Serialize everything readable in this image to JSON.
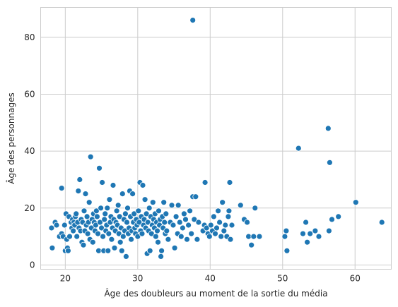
{
  "chart_data": {
    "type": "scatter",
    "title": "",
    "xlabel": "Âge des doubleurs au moment de la sortie du média",
    "ylabel": "Âge des personnages",
    "xlim": [
      16.6,
      65.0
    ],
    "ylim": [
      -1.5,
      90.5
    ],
    "x_ticks": [
      20,
      30,
      40,
      50,
      60
    ],
    "y_ticks": [
      0,
      20,
      40,
      60,
      80
    ],
    "grid": true,
    "marker_color": "#1f77b4",
    "marker_edge_color": "#ffffff",
    "points": [
      [
        18.1,
        13
      ],
      [
        18.2,
        6
      ],
      [
        18.6,
        15
      ],
      [
        18.8,
        14
      ],
      [
        19.2,
        10
      ],
      [
        19.5,
        27
      ],
      [
        19.5,
        11
      ],
      [
        19.7,
        10
      ],
      [
        19.9,
        14
      ],
      [
        20.0,
        5
      ],
      [
        20.1,
        18
      ],
      [
        20.2,
        9
      ],
      [
        20.3,
        6
      ],
      [
        20.4,
        5
      ],
      [
        20.5,
        17
      ],
      [
        20.6,
        10
      ],
      [
        20.8,
        15
      ],
      [
        20.9,
        13
      ],
      [
        21.0,
        16
      ],
      [
        21.1,
        12
      ],
      [
        21.2,
        15
      ],
      [
        21.3,
        14
      ],
      [
        21.4,
        17
      ],
      [
        21.5,
        18
      ],
      [
        21.6,
        10
      ],
      [
        21.7,
        15
      ],
      [
        21.8,
        26
      ],
      [
        21.9,
        13
      ],
      [
        22.0,
        30
      ],
      [
        22.1,
        12
      ],
      [
        22.2,
        16
      ],
      [
        22.3,
        8
      ],
      [
        22.4,
        15
      ],
      [
        22.5,
        7
      ],
      [
        22.6,
        19
      ],
      [
        22.7,
        12
      ],
      [
        22.8,
        25
      ],
      [
        22.9,
        14
      ],
      [
        23.0,
        17
      ],
      [
        23.1,
        11
      ],
      [
        23.2,
        15
      ],
      [
        23.3,
        22
      ],
      [
        23.4,
        9
      ],
      [
        23.5,
        38
      ],
      [
        23.6,
        13
      ],
      [
        23.7,
        16
      ],
      [
        23.8,
        8
      ],
      [
        23.9,
        18
      ],
      [
        24.0,
        15
      ],
      [
        24.1,
        12
      ],
      [
        24.2,
        14
      ],
      [
        24.3,
        19
      ],
      [
        24.4,
        17
      ],
      [
        24.5,
        11
      ],
      [
        24.6,
        5
      ],
      [
        24.7,
        34
      ],
      [
        24.8,
        15
      ],
      [
        24.9,
        20
      ],
      [
        25.0,
        13
      ],
      [
        25.1,
        29
      ],
      [
        25.2,
        10
      ],
      [
        25.3,
        5
      ],
      [
        25.4,
        16
      ],
      [
        25.5,
        18
      ],
      [
        25.6,
        12
      ],
      [
        25.7,
        14
      ],
      [
        25.8,
        20
      ],
      [
        25.9,
        5
      ],
      [
        26.0,
        11
      ],
      [
        26.1,
        23
      ],
      [
        26.2,
        15
      ],
      [
        26.3,
        17
      ],
      [
        26.4,
        9
      ],
      [
        26.5,
        13
      ],
      [
        26.6,
        28
      ],
      [
        26.7,
        16
      ],
      [
        26.8,
        6
      ],
      [
        26.9,
        12
      ],
      [
        27.0,
        15
      ],
      [
        27.1,
        19
      ],
      [
        27.2,
        14
      ],
      [
        27.3,
        21
      ],
      [
        27.4,
        11
      ],
      [
        27.5,
        17
      ],
      [
        27.6,
        8
      ],
      [
        27.7,
        13
      ],
      [
        27.8,
        5
      ],
      [
        27.9,
        25
      ],
      [
        28.0,
        10
      ],
      [
        28.1,
        16
      ],
      [
        28.2,
        12
      ],
      [
        28.3,
        18
      ],
      [
        28.4,
        3
      ],
      [
        28.5,
        15
      ],
      [
        28.6,
        20
      ],
      [
        28.7,
        11
      ],
      [
        28.8,
        13
      ],
      [
        28.9,
        26
      ],
      [
        29.0,
        17
      ],
      [
        29.1,
        9
      ],
      [
        29.2,
        12
      ],
      [
        29.3,
        25
      ],
      [
        29.4,
        15
      ],
      [
        29.5,
        18
      ],
      [
        29.6,
        13
      ],
      [
        29.7,
        11
      ],
      [
        29.8,
        16
      ],
      [
        29.9,
        14
      ],
      [
        30.0,
        10
      ],
      [
        30.1,
        19
      ],
      [
        30.2,
        15
      ],
      [
        30.3,
        29
      ],
      [
        30.4,
        12
      ],
      [
        30.5,
        17
      ],
      [
        30.6,
        11
      ],
      [
        30.7,
        28
      ],
      [
        30.8,
        14
      ],
      [
        30.9,
        16
      ],
      [
        31.0,
        23
      ],
      [
        31.1,
        13
      ],
      [
        31.2,
        18
      ],
      [
        31.3,
        4
      ],
      [
        31.4,
        15
      ],
      [
        31.5,
        12
      ],
      [
        31.6,
        20
      ],
      [
        31.7,
        5
      ],
      [
        31.8,
        17
      ],
      [
        31.9,
        11
      ],
      [
        32.0,
        14
      ],
      [
        32.1,
        22
      ],
      [
        32.2,
        16
      ],
      [
        32.3,
        13
      ],
      [
        32.4,
        18
      ],
      [
        32.5,
        10
      ],
      [
        32.6,
        15
      ],
      [
        32.7,
        12
      ],
      [
        32.8,
        8
      ],
      [
        32.9,
        19
      ],
      [
        33.0,
        14
      ],
      [
        33.1,
        16
      ],
      [
        33.2,
        3
      ],
      [
        33.3,
        5
      ],
      [
        33.4,
        17
      ],
      [
        33.5,
        13
      ],
      [
        33.6,
        22
      ],
      [
        33.7,
        15
      ],
      [
        33.8,
        11
      ],
      [
        33.9,
        18
      ],
      [
        34.0,
        12
      ],
      [
        34.2,
        9
      ],
      [
        34.5,
        15
      ],
      [
        34.7,
        21
      ],
      [
        34.9,
        14
      ],
      [
        35.1,
        6
      ],
      [
        35.3,
        17
      ],
      [
        35.5,
        11
      ],
      [
        35.6,
        21
      ],
      [
        35.8,
        15
      ],
      [
        36.0,
        10
      ],
      [
        36.2,
        13
      ],
      [
        36.4,
        18
      ],
      [
        36.6,
        16
      ],
      [
        36.8,
        9
      ],
      [
        37.0,
        14
      ],
      [
        37.2,
        19
      ],
      [
        37.4,
        11
      ],
      [
        37.6,
        24
      ],
      [
        37.6,
        86
      ],
      [
        37.8,
        16
      ],
      [
        38.0,
        24
      ],
      [
        38.2,
        9
      ],
      [
        38.4,
        15
      ],
      [
        39.0,
        12
      ],
      [
        39.2,
        14
      ],
      [
        39.3,
        29
      ],
      [
        39.5,
        13
      ],
      [
        39.7,
        11
      ],
      [
        39.9,
        10
      ],
      [
        40.1,
        14
      ],
      [
        40.3,
        12
      ],
      [
        40.5,
        17
      ],
      [
        40.7,
        11
      ],
      [
        40.9,
        13
      ],
      [
        41.1,
        19
      ],
      [
        41.3,
        15
      ],
      [
        41.5,
        10
      ],
      [
        41.7,
        22
      ],
      [
        41.9,
        12
      ],
      [
        42.1,
        14
      ],
      [
        42.3,
        10
      ],
      [
        42.5,
        17
      ],
      [
        42.6,
        19
      ],
      [
        42.7,
        29
      ],
      [
        42.8,
        9
      ],
      [
        43.0,
        14
      ],
      [
        44.2,
        21
      ],
      [
        44.7,
        16
      ],
      [
        45.1,
        15
      ],
      [
        45.3,
        10
      ],
      [
        45.7,
        7
      ],
      [
        46.0,
        10
      ],
      [
        46.2,
        20
      ],
      [
        46.8,
        10
      ],
      [
        50.3,
        10
      ],
      [
        50.5,
        12
      ],
      [
        50.6,
        5
      ],
      [
        52.2,
        41
      ],
      [
        52.8,
        11
      ],
      [
        53.2,
        15
      ],
      [
        53.4,
        8
      ],
      [
        53.8,
        11
      ],
      [
        54.5,
        12
      ],
      [
        55.0,
        10
      ],
      [
        56.3,
        48
      ],
      [
        56.4,
        12
      ],
      [
        56.5,
        36
      ],
      [
        56.8,
        16
      ],
      [
        57.7,
        17
      ],
      [
        60.1,
        22
      ],
      [
        63.7,
        15
      ]
    ]
  }
}
